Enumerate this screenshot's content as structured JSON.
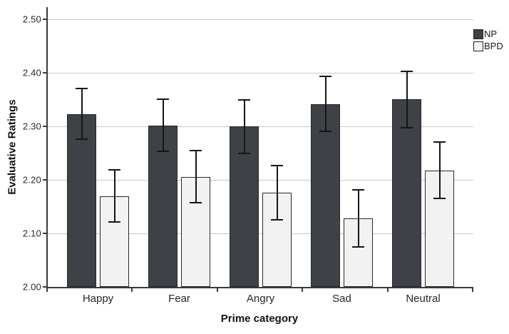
{
  "chart_data": {
    "type": "bar",
    "title": "",
    "xlabel": "Prime category",
    "ylabel": "Evaluative Ratings",
    "categories": [
      "Happy",
      "Fear",
      "Angry",
      "Sad",
      "Neutral"
    ],
    "series": [
      {
        "name": "NP",
        "fill": "#3e4146",
        "values": [
          2.323,
          2.301,
          2.3,
          2.342,
          2.351
        ],
        "error_low": [
          2.276,
          2.253,
          2.249,
          2.291,
          2.298
        ],
        "error_high": [
          2.371,
          2.351,
          2.349,
          2.394,
          2.403
        ]
      },
      {
        "name": "BPD",
        "fill": "#f2f2f2",
        "values": [
          2.17,
          2.206,
          2.176,
          2.128,
          2.217
        ],
        "error_low": [
          2.121,
          2.157,
          2.126,
          2.075,
          2.165
        ],
        "error_high": [
          2.219,
          2.255,
          2.227,
          2.182,
          2.271
        ]
      }
    ],
    "y_ticks": [
      "2.00",
      "2.10",
      "2.20",
      "2.30",
      "2.40",
      "2.50"
    ],
    "ylim": [
      2.0,
      2.523
    ],
    "grid": true,
    "error_bars": true,
    "legend_position": "top-right",
    "colors": {
      "gridline": "#c7c7c7",
      "axis": "#3a3a3a",
      "error_bar": "#161616",
      "background": "#ffffff"
    }
  }
}
